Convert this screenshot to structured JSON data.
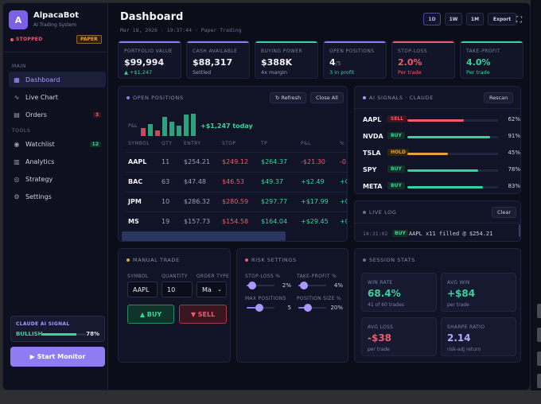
{
  "sidebar": {
    "logo_letter": "A",
    "app_name": "AlpacaBot",
    "app_sub": "AI Trading System",
    "status": "STOPPED",
    "mode_badge": "PAPER",
    "section_main": "MAIN",
    "section_tools": "TOOLS",
    "items": [
      {
        "label": "Dashboard",
        "icon": "grid-icon"
      },
      {
        "label": "Live Chart",
        "icon": "pulse-icon"
      },
      {
        "label": "Orders",
        "icon": "doc-icon",
        "count": "3"
      },
      {
        "label": "Watchlist",
        "icon": "eye-icon",
        "count": "12"
      },
      {
        "label": "Analytics",
        "icon": "bar-chart-icon"
      },
      {
        "label": "Strategy",
        "icon": "target-icon"
      },
      {
        "label": "Settings",
        "icon": "gear-icon"
      }
    ],
    "ai_signal": {
      "title": "CLAUDE AI SIGNAL",
      "value": "BULLISH",
      "confidence": "78%",
      "level": 0.78
    },
    "start_button": "▶ Start Monitor"
  },
  "header": {
    "title": "Dashboard",
    "subtitle": "Mar 18, 2026 · 19:37:44 · Paper Trading",
    "timeframes": [
      "1D",
      "1W",
      "1M"
    ],
    "export": "Export"
  },
  "stats": [
    {
      "label": "PORTFOLIO VALUE",
      "value": "$99,994",
      "sub": "▲ +$1,247",
      "accent": "#8f7cf2",
      "sub_color": "#35d49a"
    },
    {
      "label": "CASH AVAILABLE",
      "value": "$88,317",
      "sub": "Settled",
      "accent": "#8f7cf2",
      "sub_color": "#9a9dc0"
    },
    {
      "label": "BUYING POWER",
      "value": "$388K",
      "sub": "4x margin",
      "accent": "#35d49a",
      "sub_color": "#9a9dc0"
    },
    {
      "label": "OPEN POSITIONS",
      "value": "4",
      "value_small": "/5",
      "sub": "3 in profit",
      "accent": "#8f7cf2",
      "sub_color": "#35d49a"
    },
    {
      "label": "STOP-LOSS",
      "value": "2.0%",
      "sub": "Per trade",
      "accent": "#ef5b6f",
      "sub_color": "#ef5b6f",
      "value_color": "#ef5b6f"
    },
    {
      "label": "TAKE-PROFIT",
      "value": "4.0%",
      "sub": "Per trade",
      "accent": "#35d49a",
      "sub_color": "#35d49a",
      "value_color": "#35d49a"
    }
  ],
  "positions": {
    "title": "OPEN POSITIONS",
    "refresh": "↻ Refresh",
    "close_all": "Close All",
    "pnl_label": "P&L",
    "pnl_today": "+$1,247 today",
    "bars": [
      {
        "h": 0.35,
        "c": "#ef5b6f"
      },
      {
        "h": 0.55,
        "c": "#35d49a"
      },
      {
        "h": 0.25,
        "c": "#ef5b6f"
      },
      {
        "h": 0.85,
        "c": "#35d49a"
      },
      {
        "h": 0.65,
        "c": "#35d49a"
      },
      {
        "h": 0.45,
        "c": "#35d49a"
      },
      {
        "h": 0.95,
        "c": "#35d49a"
      },
      {
        "h": 1.0,
        "c": "#35d49a"
      }
    ],
    "columns": [
      "SYMBOL",
      "QTY",
      "ENTRY",
      "STOP",
      "TP",
      "P&L",
      "%"
    ],
    "rows": [
      {
        "symbol": "AAPL",
        "qty": "11",
        "entry": "$254.21",
        "stop": "$249.12",
        "tp": "$264.37",
        "pnl": "-$21.30",
        "pct": "-0.",
        "up": false
      },
      {
        "symbol": "BAC",
        "qty": "63",
        "entry": "$47.48",
        "stop": "$46.53",
        "tp": "$49.37",
        "pnl": "+$2.49",
        "pct": "+0.",
        "up": true
      },
      {
        "symbol": "JPM",
        "qty": "10",
        "entry": "$286.32",
        "stop": "$280.59",
        "tp": "$297.77",
        "pnl": "+$17.99",
        "pct": "+0.",
        "up": true
      },
      {
        "symbol": "MS",
        "qty": "19",
        "entry": "$157.73",
        "stop": "$154.58",
        "tp": "$164.04",
        "pnl": "+$29.45",
        "pct": "+0.",
        "up": true
      }
    ]
  },
  "signals": {
    "title": "AI SIGNALS · CLAUDE",
    "rescan": "Rescan",
    "rows": [
      {
        "symbol": "AAPL",
        "action": "SELL",
        "kind": "sell",
        "conf": "62%",
        "level": 0.62,
        "color": "#ef5b6f"
      },
      {
        "symbol": "NVDA",
        "action": "BUY",
        "kind": "buy",
        "conf": "91%",
        "level": 0.91,
        "color": "#35d49a"
      },
      {
        "symbol": "TSLA",
        "action": "HOLD",
        "kind": "hold",
        "conf": "45%",
        "level": 0.45,
        "color": "#e3a33a"
      },
      {
        "symbol": "SPY",
        "action": "BUY",
        "kind": "buy",
        "conf": "78%",
        "level": 0.78,
        "color": "#35d49a"
      },
      {
        "symbol": "META",
        "action": "BUY",
        "kind": "buy",
        "conf": "83%",
        "level": 0.83,
        "color": "#35d49a"
      }
    ]
  },
  "live_log": {
    "title": "LIVE LOG",
    "clear": "Clear",
    "time": "14:31:02",
    "badge": "BUY",
    "text": "AAPL x11 filled @ $254.21"
  },
  "manual_trade": {
    "title": "MANUAL TRADE",
    "symbol_label": "SYMBOL",
    "quantity_label": "QUANTITY",
    "order_type_label": "ORDER TYPE",
    "symbol_value": "AAPL",
    "quantity_value": "10",
    "order_type_value": "Ma",
    "buy": "▲ BUY",
    "sell": "▼ SELL"
  },
  "risk": {
    "title": "RISK SETTINGS",
    "stop_loss_label": "STOP-LOSS %",
    "stop_loss_value": "2%",
    "stop_loss_level": 0.2,
    "take_profit_label": "TAKE-PROFIT %",
    "take_profit_value": "4%",
    "take_profit_level": 0.2,
    "max_positions_label": "MAX POSITIONS",
    "max_positions_value": "5",
    "max_positions_level": 0.45,
    "position_size_label": "POSITION SIZE %",
    "position_size_value": "20%",
    "position_size_level": 0.35
  },
  "session": {
    "title": "SESSION STATS",
    "cards": [
      {
        "label": "WIN RATE",
        "value": "68.4%",
        "sub": "41 of 60 trades",
        "color": "#35d49a"
      },
      {
        "label": "AVG WIN",
        "value": "+$84",
        "sub": "per trade",
        "color": "#35d49a"
      },
      {
        "label": "AVG LOSS",
        "value": "-$38",
        "sub": "per trade",
        "color": "#ef5b6f"
      },
      {
        "label": "SHARPE RATIO",
        "value": "2.14",
        "sub": "risk-adj return",
        "color": "#b3a8ff"
      }
    ]
  }
}
